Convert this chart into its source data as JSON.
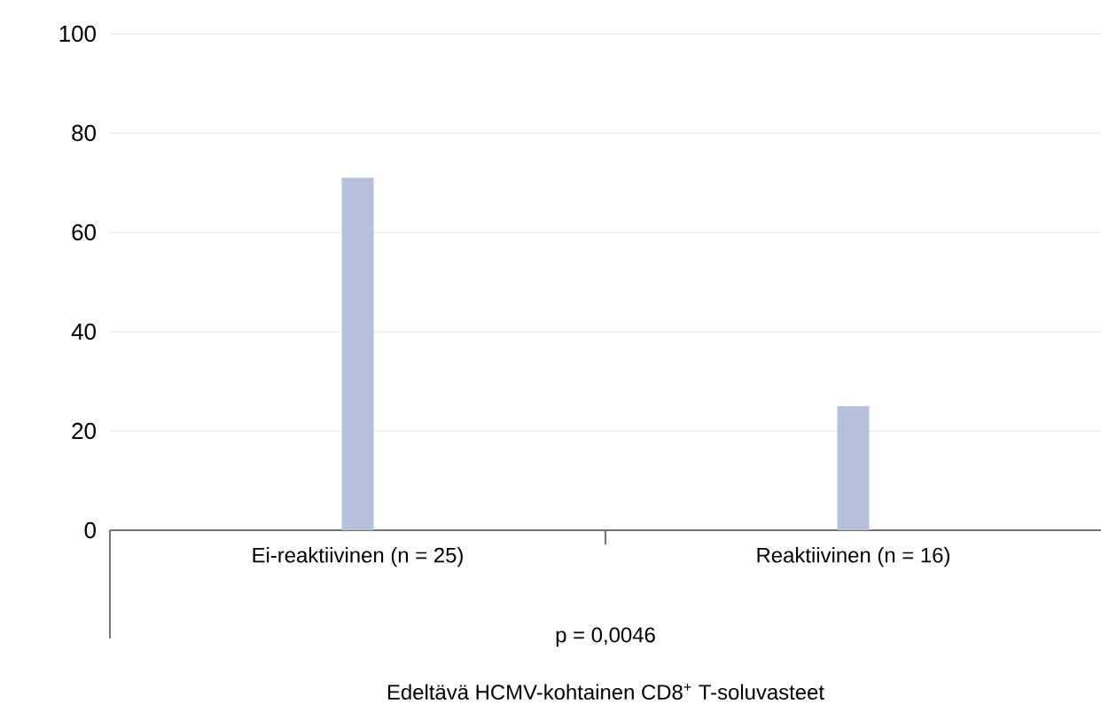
{
  "chart_data": {
    "type": "bar",
    "categories": [
      "Ei-reaktiivinen (n = 25)",
      "Reaktiivinen (n = 16)"
    ],
    "values": [
      71,
      25
    ],
    "color": "#b4c0dc",
    "ylim": [
      0,
      100
    ],
    "yticks": [
      0,
      20,
      40,
      60,
      80,
      100
    ],
    "grid": "y",
    "annotations": [
      "p = 0,0046",
      "Edeltävä HCMV-kohtainen CD8$^{+}$ T-soluvasteet"
    ]
  }
}
